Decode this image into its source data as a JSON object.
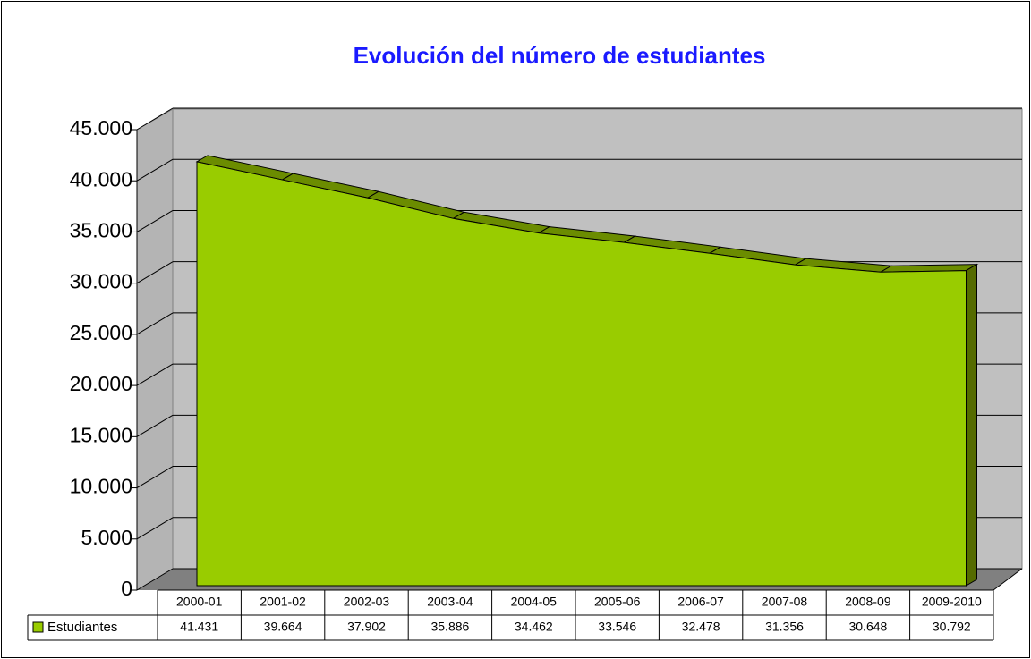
{
  "chart_data": {
    "type": "area3d",
    "title": "Evolución del número de estudiantes",
    "categories": [
      "2000-01",
      "2001-02",
      "2002-03",
      "2003-04",
      "2004-05",
      "2005-06",
      "2006-07",
      "2007-08",
      "2008-09",
      "2009-2010"
    ],
    "series": [
      {
        "name": "Estudiantes",
        "color": "#99cc00",
        "values": [
          41431,
          39664,
          37902,
          35886,
          34462,
          33546,
          32478,
          31356,
          30648,
          30792
        ],
        "value_labels": [
          "41.431",
          "39.664",
          "37.902",
          "35.886",
          "34.462",
          "33.546",
          "32.478",
          "31.356",
          "30.648",
          "30.792"
        ]
      }
    ],
    "ylim": [
      0,
      45000
    ],
    "yticks": [
      0,
      {
        "value": 5000,
        "label": "5.000"
      },
      {
        "value": 10000,
        "label": "10.000"
      },
      {
        "value": 15000,
        "label": "15.000"
      },
      {
        "value": 20000,
        "label": "20.000"
      },
      {
        "value": 25000,
        "label": "25.000"
      },
      {
        "value": 30000,
        "label": "30.000"
      },
      {
        "value": 35000,
        "label": "35.000"
      },
      {
        "value": 40000,
        "label": "40.000"
      },
      {
        "value": 45000,
        "label": "45.000"
      }
    ],
    "grid": true
  }
}
